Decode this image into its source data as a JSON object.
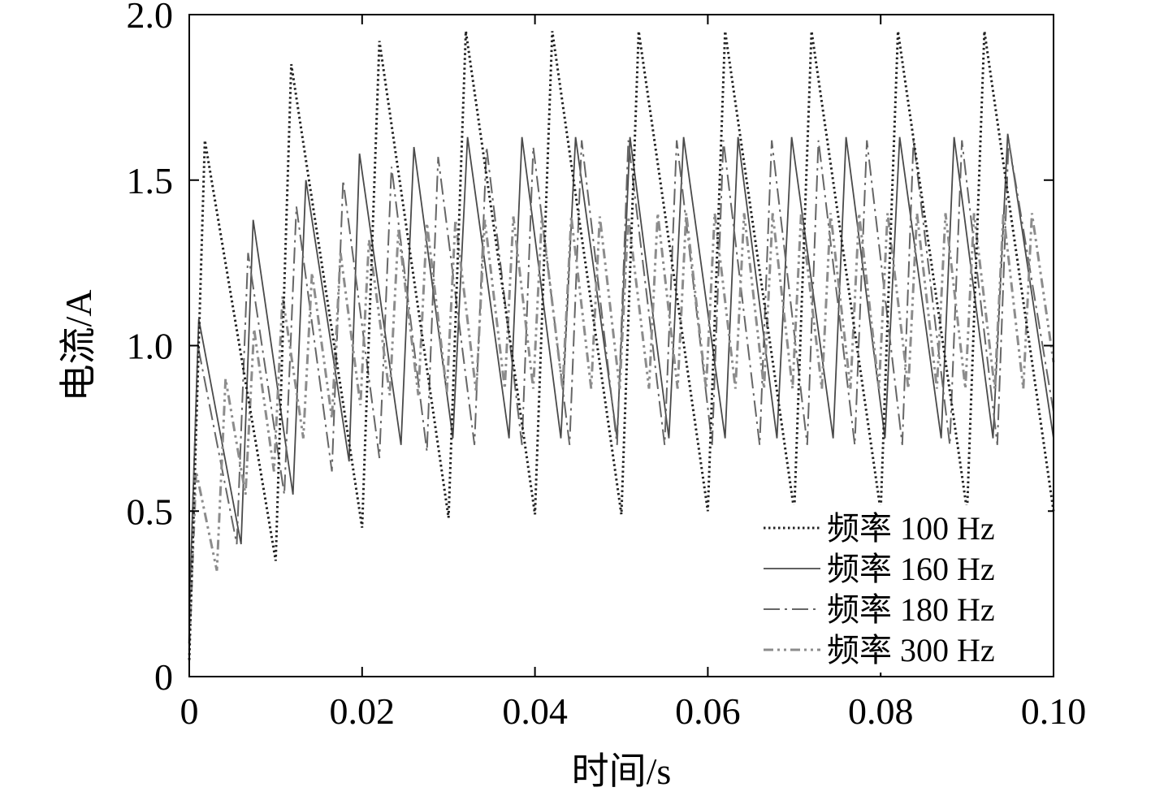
{
  "chart_data": {
    "type": "line",
    "xlabel": "时间/s",
    "ylabel": "电流/A",
    "xlim": [
      0,
      0.1
    ],
    "ylim": [
      0,
      2.0
    ],
    "x_ticks": [
      "0",
      "0.02",
      "0.04",
      "0.06",
      "0.08",
      "0.10"
    ],
    "x_tick_values": [
      0,
      0.02,
      0.04,
      0.06,
      0.08,
      0.1
    ],
    "y_ticks": [
      "0",
      "0.5",
      "1.0",
      "1.5",
      "2.0"
    ],
    "y_tick_values": [
      0,
      0.5,
      1.0,
      1.5,
      2.0
    ],
    "legend_position": "bottom-right",
    "grid": false,
    "series": [
      {
        "name": "频率 100 Hz",
        "style": "dotted",
        "color": "#222222",
        "x": [
          0,
          0.0018,
          0.01,
          0.0118,
          0.02,
          0.022,
          0.03,
          0.032,
          0.04,
          0.042,
          0.05,
          0.052,
          0.06,
          0.062,
          0.07,
          0.072,
          0.08,
          0.082,
          0.09,
          0.092,
          0.1
        ],
        "y": [
          0.05,
          1.62,
          0.35,
          1.85,
          0.45,
          1.92,
          0.48,
          1.95,
          0.49,
          1.95,
          0.49,
          1.95,
          0.5,
          1.95,
          0.5,
          1.95,
          0.5,
          1.95,
          0.5,
          1.95,
          0.5
        ]
      },
      {
        "name": "频率 160 Hz",
        "style": "solid",
        "color": "#4a4a4a",
        "x": [
          0,
          0.0011,
          0.006,
          0.0074,
          0.012,
          0.0135,
          0.0185,
          0.0197,
          0.0245,
          0.026,
          0.0305,
          0.0322,
          0.037,
          0.0385,
          0.043,
          0.0447,
          0.0495,
          0.051,
          0.0555,
          0.0572,
          0.062,
          0.0635,
          0.068,
          0.0697,
          0.0745,
          0.076,
          0.0805,
          0.0822,
          0.087,
          0.0885,
          0.093,
          0.0947,
          0.1
        ],
        "y": [
          0.2,
          1.08,
          0.4,
          1.38,
          0.55,
          1.5,
          0.65,
          1.58,
          0.7,
          1.6,
          0.72,
          1.63,
          0.72,
          1.63,
          0.72,
          1.63,
          0.72,
          1.63,
          0.72,
          1.63,
          0.72,
          1.63,
          0.72,
          1.63,
          0.72,
          1.63,
          0.72,
          1.63,
          0.72,
          1.63,
          0.72,
          1.64,
          0.72
        ]
      },
      {
        "name": "频率 180 Hz",
        "style": "dashdot",
        "color": "#666666",
        "x": [
          0,
          0.001,
          0.0055,
          0.0068,
          0.011,
          0.0124,
          0.0165,
          0.0178,
          0.022,
          0.0234,
          0.0275,
          0.0288,
          0.033,
          0.0344,
          0.0385,
          0.0398,
          0.044,
          0.0454,
          0.0495,
          0.0508,
          0.055,
          0.0564,
          0.0605,
          0.0618,
          0.066,
          0.0674,
          0.0715,
          0.0728,
          0.077,
          0.0784,
          0.0825,
          0.0838,
          0.088,
          0.0894,
          0.0935,
          0.0948,
          0.1
        ],
        "y": [
          0.15,
          1.0,
          0.4,
          1.28,
          0.55,
          1.42,
          0.62,
          1.5,
          0.66,
          1.54,
          0.68,
          1.57,
          0.7,
          1.6,
          0.7,
          1.6,
          0.7,
          1.62,
          0.7,
          1.62,
          0.7,
          1.62,
          0.7,
          1.62,
          0.7,
          1.62,
          0.7,
          1.62,
          0.7,
          1.62,
          0.7,
          1.62,
          0.7,
          1.62,
          0.7,
          1.62,
          0.8
        ]
      },
      {
        "name": "频率 300 Hz",
        "style": "dashdotdot",
        "color": "#8c8c8c",
        "x": [
          0,
          0.0008,
          0.0032,
          0.0042,
          0.0065,
          0.0075,
          0.0098,
          0.0108,
          0.0132,
          0.0142,
          0.0165,
          0.0175,
          0.0198,
          0.0208,
          0.0232,
          0.0242,
          0.0265,
          0.0275,
          0.0298,
          0.0308,
          0.0332,
          0.0342,
          0.0365,
          0.0375,
          0.0398,
          0.0408,
          0.0432,
          0.0442,
          0.0465,
          0.0475,
          0.0498,
          0.0508,
          0.0532,
          0.0542,
          0.0565,
          0.0575,
          0.0598,
          0.0608,
          0.0632,
          0.0642,
          0.0665,
          0.0675,
          0.0698,
          0.0708,
          0.0732,
          0.0742,
          0.0765,
          0.0775,
          0.0798,
          0.0808,
          0.0832,
          0.0842,
          0.0865,
          0.0875,
          0.0898,
          0.0908,
          0.0932,
          0.0942,
          0.0965,
          0.0975,
          0.1
        ],
        "y": [
          0.1,
          0.62,
          0.32,
          0.9,
          0.55,
          1.05,
          0.62,
          1.15,
          0.72,
          1.22,
          0.78,
          1.28,
          0.82,
          1.32,
          0.85,
          1.35,
          0.85,
          1.37,
          0.86,
          1.38,
          0.86,
          1.38,
          0.87,
          1.39,
          0.87,
          1.39,
          0.87,
          1.39,
          0.87,
          1.39,
          0.87,
          1.39,
          0.87,
          1.4,
          0.87,
          1.4,
          0.87,
          1.4,
          0.87,
          1.4,
          0.87,
          1.4,
          0.87,
          1.4,
          0.87,
          1.4,
          0.87,
          1.4,
          0.87,
          1.4,
          0.87,
          1.4,
          0.87,
          1.4,
          0.87,
          1.4,
          0.87,
          1.4,
          0.87,
          1.4,
          0.95
        ]
      }
    ]
  }
}
